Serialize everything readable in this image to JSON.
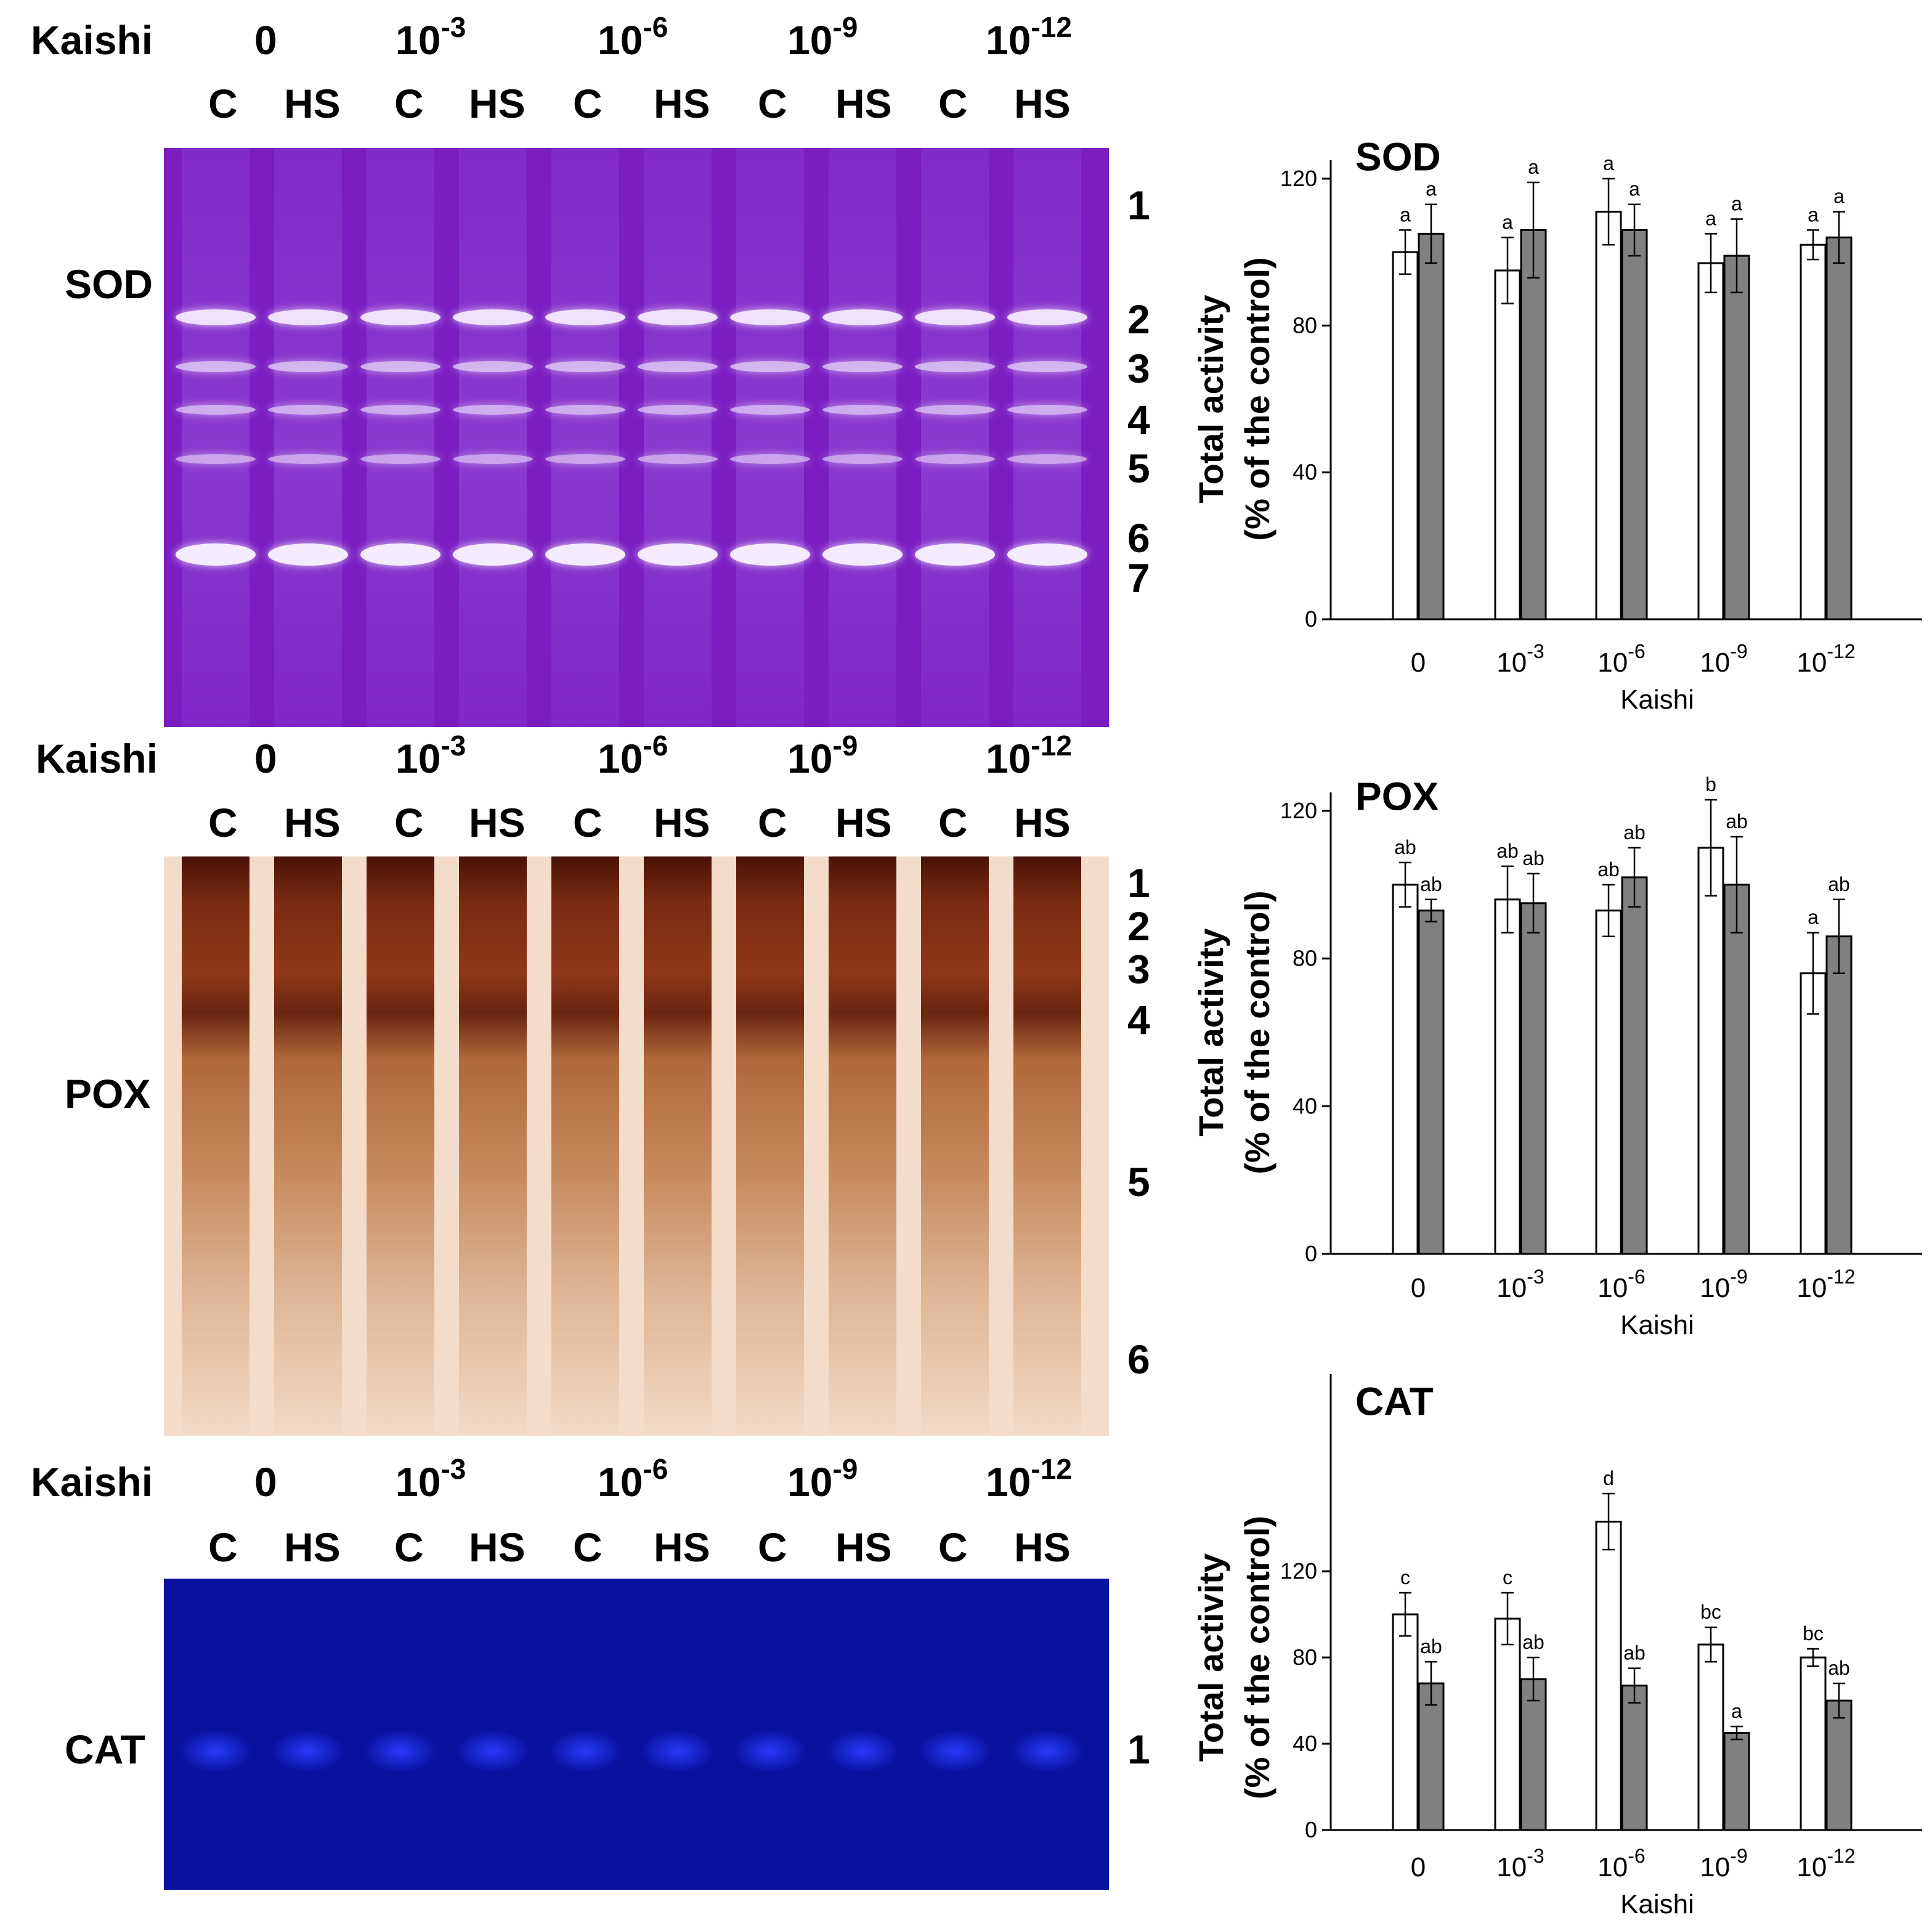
{
  "header": {
    "row_label": "Kaishi",
    "concentrations": [
      {
        "base": "0",
        "exp": ""
      },
      {
        "base": "10",
        "exp": "-3"
      },
      {
        "base": "10",
        "exp": "-6"
      },
      {
        "base": "10",
        "exp": "-9"
      },
      {
        "base": "10",
        "exp": "-12"
      }
    ],
    "treatments": [
      "C",
      "HS",
      "C",
      "HS",
      "C",
      "HS",
      "C",
      "HS",
      "C",
      "HS"
    ]
  },
  "gels": [
    {
      "label": "SOD",
      "bands": [
        "1",
        "2",
        "3",
        "4",
        "5",
        "6",
        "7"
      ],
      "bg": "#7a1ec2"
    },
    {
      "label": "POX",
      "bands": [
        "1",
        "2",
        "3",
        "4",
        "5",
        "6"
      ],
      "bg": "#f3dcc9"
    },
    {
      "label": "CAT",
      "bands": [
        "1"
      ],
      "bg": "#0b12a0"
    }
  ],
  "chart_data": [
    {
      "type": "bar",
      "title": "SOD",
      "xlabel": "Kaishi",
      "ylabel": "Total activity (% of the control)",
      "categories": [
        "0",
        "10^-3",
        "10^-6",
        "10^-9",
        "10^-12"
      ],
      "ylim": [
        0,
        120
      ],
      "yticks": [
        0,
        40,
        80,
        120
      ],
      "series": [
        {
          "values": [
            100,
            95,
            111,
            97,
            102
          ],
          "errors": [
            6,
            9,
            9,
            8,
            4
          ],
          "letters": [
            "a",
            "a",
            "a",
            "a",
            "a"
          ],
          "fill": "#ffffff"
        },
        {
          "values": [
            105,
            106,
            106,
            99,
            104
          ],
          "errors": [
            8,
            13,
            7,
            10,
            7
          ],
          "letters": [
            "a",
            "a",
            "a",
            "a",
            "a"
          ],
          "fill": "#808080"
        }
      ]
    },
    {
      "type": "bar",
      "title": "POX",
      "xlabel": "Kaishi",
      "ylabel": "Total activity (% of the control)",
      "categories": [
        "0",
        "10^-3",
        "10^-6",
        "10^-9",
        "10^-12"
      ],
      "ylim": [
        0,
        120
      ],
      "yticks": [
        0,
        40,
        80,
        120
      ],
      "series": [
        {
          "values": [
            100,
            96,
            93,
            110,
            76
          ],
          "errors": [
            6,
            9,
            7,
            13,
            11
          ],
          "letters": [
            "ab",
            "ab",
            "ab",
            "b",
            "a"
          ],
          "fill": "#ffffff"
        },
        {
          "values": [
            93,
            95,
            102,
            100,
            86
          ],
          "errors": [
            3,
            8,
            8,
            13,
            10
          ],
          "letters": [
            "ab",
            "ab",
            "ab",
            "ab",
            "ab"
          ],
          "fill": "#808080"
        }
      ]
    },
    {
      "type": "bar",
      "title": "CAT",
      "xlabel": "Kaishi",
      "ylabel": "Total activity (% of the control)",
      "categories": [
        "0",
        "10^-3",
        "10^-6",
        "10^-9",
        "10^-12"
      ],
      "ylim": [
        0,
        160
      ],
      "yticks": [
        0,
        40,
        80,
        120
      ],
      "series": [
        {
          "values": [
            100,
            98,
            143,
            86,
            80
          ],
          "errors": [
            10,
            12,
            13,
            8,
            4
          ],
          "letters": [
            "c",
            "c",
            "d",
            "bc",
            "bc"
          ],
          "fill": "#ffffff"
        },
        {
          "values": [
            68,
            70,
            67,
            45,
            60
          ],
          "errors": [
            10,
            10,
            8,
            3,
            8
          ],
          "letters": [
            "ab",
            "ab",
            "ab",
            "a",
            "ab"
          ],
          "fill": "#808080"
        }
      ]
    }
  ]
}
